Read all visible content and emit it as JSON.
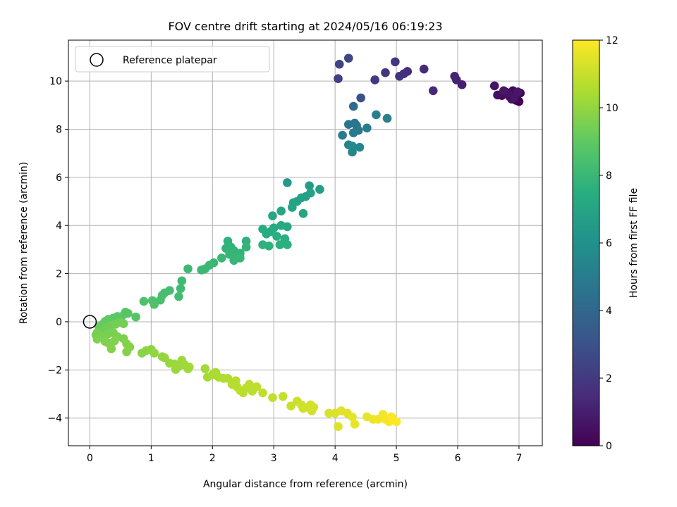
{
  "chart_data": {
    "type": "scatter",
    "title": "FOV centre drift starting at 2024/05/16 06:19:23",
    "xlabel": "Angular distance from reference (arcmin)",
    "ylabel": "Rotation from reference (arcmin)",
    "xlim": [
      -0.35,
      7.38
    ],
    "ylim": [
      -5.15,
      11.7
    ],
    "xticks": [
      0,
      1,
      2,
      3,
      4,
      5,
      6,
      7
    ],
    "yticks": [
      -4,
      -2,
      0,
      2,
      4,
      6,
      8,
      10
    ],
    "grid": true,
    "legend": {
      "position": "top-left",
      "entries": [
        "Reference platepar"
      ]
    },
    "reference_point": {
      "x": 0,
      "y": 0
    },
    "colorbar": {
      "label": "Hours from first FF file",
      "range": [
        0,
        12
      ],
      "ticks": [
        0,
        2,
        4,
        6,
        8,
        10,
        12
      ],
      "colormap": "viridis"
    },
    "points": [
      {
        "x": 7.0,
        "y": 9.15,
        "t": 0.05
      },
      {
        "x": 6.95,
        "y": 9.2,
        "t": 0.1
      },
      {
        "x": 7.02,
        "y": 9.5,
        "t": 0.15
      },
      {
        "x": 6.9,
        "y": 9.6,
        "t": 0.2
      },
      {
        "x": 6.85,
        "y": 9.35,
        "t": 0.25
      },
      {
        "x": 6.78,
        "y": 9.55,
        "t": 0.3
      },
      {
        "x": 6.72,
        "y": 9.4,
        "t": 0.35
      },
      {
        "x": 6.95,
        "y": 9.45,
        "t": 0.4
      },
      {
        "x": 6.88,
        "y": 9.25,
        "t": 0.45
      },
      {
        "x": 6.65,
        "y": 9.42,
        "t": 0.5
      },
      {
        "x": 6.6,
        "y": 9.8,
        "t": 0.6
      },
      {
        "x": 6.82,
        "y": 9.5,
        "t": 0.65
      },
      {
        "x": 6.92,
        "y": 9.3,
        "t": 0.7
      },
      {
        "x": 6.98,
        "y": 9.55,
        "t": 0.75
      },
      {
        "x": 6.75,
        "y": 9.6,
        "t": 0.8
      },
      {
        "x": 6.07,
        "y": 9.85,
        "t": 1.0
      },
      {
        "x": 5.98,
        "y": 10.05,
        "t": 1.1
      },
      {
        "x": 5.95,
        "y": 10.2,
        "t": 1.2
      },
      {
        "x": 5.6,
        "y": 9.6,
        "t": 1.3
      },
      {
        "x": 5.45,
        "y": 10.5,
        "t": 1.4
      },
      {
        "x": 5.18,
        "y": 10.4,
        "t": 1.5
      },
      {
        "x": 5.12,
        "y": 10.3,
        "t": 1.6
      },
      {
        "x": 5.05,
        "y": 10.2,
        "t": 1.7
      },
      {
        "x": 4.98,
        "y": 10.8,
        "t": 1.8
      },
      {
        "x": 4.82,
        "y": 10.35,
        "t": 1.9
      },
      {
        "x": 4.65,
        "y": 10.05,
        "t": 2.0
      },
      {
        "x": 4.05,
        "y": 10.1,
        "t": 2.2
      },
      {
        "x": 4.07,
        "y": 10.7,
        "t": 2.4
      },
      {
        "x": 4.22,
        "y": 10.95,
        "t": 2.6
      },
      {
        "x": 4.42,
        "y": 9.3,
        "t": 2.9
      },
      {
        "x": 4.3,
        "y": 8.95,
        "t": 4.2
      },
      {
        "x": 4.32,
        "y": 8.25,
        "t": 4.5
      },
      {
        "x": 4.22,
        "y": 8.2,
        "t": 4.6
      },
      {
        "x": 4.35,
        "y": 8.15,
        "t": 4.7
      },
      {
        "x": 4.38,
        "y": 7.95,
        "t": 4.8
      },
      {
        "x": 4.3,
        "y": 7.85,
        "t": 4.9
      },
      {
        "x": 4.12,
        "y": 7.75,
        "t": 5.0
      },
      {
        "x": 4.52,
        "y": 8.05,
        "t": 5.1
      },
      {
        "x": 4.67,
        "y": 8.6,
        "t": 5.2
      },
      {
        "x": 4.85,
        "y": 8.45,
        "t": 5.25
      },
      {
        "x": 4.22,
        "y": 7.35,
        "t": 5.3
      },
      {
        "x": 4.28,
        "y": 7.05,
        "t": 5.4
      },
      {
        "x": 4.4,
        "y": 7.25,
        "t": 5.5
      },
      {
        "x": 4.28,
        "y": 7.3,
        "t": 5.55
      },
      {
        "x": 3.22,
        "y": 5.78,
        "t": 6.5
      },
      {
        "x": 3.58,
        "y": 5.65,
        "t": 6.6
      },
      {
        "x": 3.75,
        "y": 5.5,
        "t": 6.7
      },
      {
        "x": 3.6,
        "y": 5.35,
        "t": 6.75
      },
      {
        "x": 3.52,
        "y": 5.2,
        "t": 6.8
      },
      {
        "x": 3.45,
        "y": 5.15,
        "t": 6.85
      },
      {
        "x": 3.38,
        "y": 5.0,
        "t": 6.9
      },
      {
        "x": 3.32,
        "y": 4.95,
        "t": 6.95
      },
      {
        "x": 3.48,
        "y": 4.5,
        "t": 7.0
      },
      {
        "x": 3.3,
        "y": 4.75,
        "t": 7.05
      },
      {
        "x": 3.12,
        "y": 4.6,
        "t": 7.1
      },
      {
        "x": 2.98,
        "y": 4.4,
        "t": 7.15
      },
      {
        "x": 3.22,
        "y": 3.95,
        "t": 7.2
      },
      {
        "x": 3.12,
        "y": 4.0,
        "t": 7.25
      },
      {
        "x": 3.0,
        "y": 3.9,
        "t": 7.3
      },
      {
        "x": 2.95,
        "y": 3.75,
        "t": 7.35
      },
      {
        "x": 2.82,
        "y": 3.85,
        "t": 7.4
      },
      {
        "x": 2.88,
        "y": 3.65,
        "t": 7.45
      },
      {
        "x": 3.05,
        "y": 3.55,
        "t": 7.5
      },
      {
        "x": 3.18,
        "y": 3.45,
        "t": 7.55
      },
      {
        "x": 3.22,
        "y": 3.2,
        "t": 7.6
      },
      {
        "x": 3.1,
        "y": 3.2,
        "t": 7.62
      },
      {
        "x": 2.92,
        "y": 3.15,
        "t": 7.65
      },
      {
        "x": 2.82,
        "y": 3.2,
        "t": 7.68
      },
      {
        "x": 2.55,
        "y": 3.35,
        "t": 7.7
      },
      {
        "x": 2.25,
        "y": 3.35,
        "t": 7.72
      },
      {
        "x": 2.3,
        "y": 3.1,
        "t": 7.75
      },
      {
        "x": 2.22,
        "y": 3.05,
        "t": 7.78
      },
      {
        "x": 2.35,
        "y": 2.95,
        "t": 7.8
      },
      {
        "x": 2.45,
        "y": 2.85,
        "t": 7.82
      },
      {
        "x": 2.55,
        "y": 3.1,
        "t": 7.85
      },
      {
        "x": 2.28,
        "y": 2.8,
        "t": 7.88
      },
      {
        "x": 2.4,
        "y": 2.72,
        "t": 7.9
      },
      {
        "x": 2.45,
        "y": 2.65,
        "t": 7.92
      },
      {
        "x": 2.35,
        "y": 2.55,
        "t": 7.95
      },
      {
        "x": 2.15,
        "y": 2.65,
        "t": 7.98
      },
      {
        "x": 2.02,
        "y": 2.45,
        "t": 8.0
      },
      {
        "x": 1.95,
        "y": 2.35,
        "t": 8.02
      },
      {
        "x": 1.88,
        "y": 2.2,
        "t": 8.05
      },
      {
        "x": 1.82,
        "y": 2.15,
        "t": 8.08
      },
      {
        "x": 1.6,
        "y": 2.2,
        "t": 8.1
      },
      {
        "x": 1.5,
        "y": 1.7,
        "t": 8.15
      },
      {
        "x": 1.48,
        "y": 1.38,
        "t": 8.2
      },
      {
        "x": 1.45,
        "y": 1.05,
        "t": 8.25
      },
      {
        "x": 1.3,
        "y": 1.3,
        "t": 8.3
      },
      {
        "x": 1.22,
        "y": 1.2,
        "t": 8.35
      },
      {
        "x": 1.18,
        "y": 1.1,
        "t": 8.4
      },
      {
        "x": 1.15,
        "y": 0.9,
        "t": 8.45
      },
      {
        "x": 1.02,
        "y": 0.88,
        "t": 8.5
      },
      {
        "x": 0.88,
        "y": 0.85,
        "t": 8.55
      },
      {
        "x": 1.05,
        "y": 0.72,
        "t": 8.6
      },
      {
        "x": 0.75,
        "y": 0.2,
        "t": 8.7
      },
      {
        "x": 0.62,
        "y": 0.35,
        "t": 8.75
      },
      {
        "x": 0.58,
        "y": 0.4,
        "t": 8.8
      },
      {
        "x": 0.52,
        "y": 0.22,
        "t": 8.85
      },
      {
        "x": 0.45,
        "y": 0.22,
        "t": 8.9
      },
      {
        "x": 0.38,
        "y": 0.15,
        "t": 8.95
      },
      {
        "x": 0.3,
        "y": 0.1,
        "t": 9.0
      },
      {
        "x": 0.25,
        "y": 0.02,
        "t": 9.05
      },
      {
        "x": 0.2,
        "y": -0.12,
        "t": 9.1
      },
      {
        "x": 0.15,
        "y": -0.2,
        "t": 9.15
      },
      {
        "x": 0.18,
        "y": -0.35,
        "t": 9.2
      },
      {
        "x": 0.22,
        "y": -0.3,
        "t": 9.25
      },
      {
        "x": 0.28,
        "y": -0.22,
        "t": 9.3
      },
      {
        "x": 0.35,
        "y": -0.15,
        "t": 9.35
      },
      {
        "x": 0.42,
        "y": -0.1,
        "t": 9.4
      },
      {
        "x": 0.5,
        "y": -0.02,
        "t": 9.42
      },
      {
        "x": 0.55,
        "y": -0.08,
        "t": 9.44
      },
      {
        "x": 0.12,
        "y": -0.45,
        "t": 9.46
      },
      {
        "x": 0.1,
        "y": -0.55,
        "t": 9.48
      },
      {
        "x": 0.2,
        "y": -0.6,
        "t": 9.5
      },
      {
        "x": 0.3,
        "y": -0.5,
        "t": 9.52
      },
      {
        "x": 0.38,
        "y": -0.45,
        "t": 9.54
      },
      {
        "x": 0.45,
        "y": -0.62,
        "t": 9.56
      },
      {
        "x": 0.55,
        "y": -0.7,
        "t": 9.58
      },
      {
        "x": 0.12,
        "y": -0.72,
        "t": 9.6
      },
      {
        "x": 0.25,
        "y": -0.82,
        "t": 9.62
      },
      {
        "x": 0.3,
        "y": -0.88,
        "t": 9.64
      },
      {
        "x": 0.4,
        "y": -0.8,
        "t": 9.66
      },
      {
        "x": 0.6,
        "y": -0.92,
        "t": 9.68
      },
      {
        "x": 0.35,
        "y": -1.12,
        "t": 9.7
      },
      {
        "x": 0.6,
        "y": -1.25,
        "t": 9.72
      },
      {
        "x": 0.65,
        "y": -1.05,
        "t": 9.74
      },
      {
        "x": 0.85,
        "y": -1.3,
        "t": 9.8
      },
      {
        "x": 0.92,
        "y": -1.2,
        "t": 9.85
      },
      {
        "x": 1.0,
        "y": -1.15,
        "t": 9.9
      },
      {
        "x": 1.05,
        "y": -1.3,
        "t": 9.95
      },
      {
        "x": 1.18,
        "y": -1.45,
        "t": 10.0
      },
      {
        "x": 1.22,
        "y": -1.5,
        "t": 10.05
      },
      {
        "x": 1.3,
        "y": -1.72,
        "t": 10.1
      },
      {
        "x": 1.38,
        "y": -1.75,
        "t": 10.15
      },
      {
        "x": 1.45,
        "y": -1.85,
        "t": 10.18
      },
      {
        "x": 1.4,
        "y": -1.98,
        "t": 10.2
      },
      {
        "x": 1.5,
        "y": -1.6,
        "t": 10.22
      },
      {
        "x": 1.55,
        "y": -1.8,
        "t": 10.24
      },
      {
        "x": 1.6,
        "y": -1.95,
        "t": 10.26
      },
      {
        "x": 1.62,
        "y": -1.88,
        "t": 10.28
      },
      {
        "x": 1.88,
        "y": -1.95,
        "t": 10.3
      },
      {
        "x": 1.92,
        "y": -2.3,
        "t": 10.35
      },
      {
        "x": 2.0,
        "y": -2.2,
        "t": 10.4
      },
      {
        "x": 2.05,
        "y": -2.1,
        "t": 10.45
      },
      {
        "x": 2.1,
        "y": -2.3,
        "t": 10.5
      },
      {
        "x": 2.18,
        "y": -2.35,
        "t": 10.55
      },
      {
        "x": 2.25,
        "y": -2.35,
        "t": 10.6
      },
      {
        "x": 2.32,
        "y": -2.6,
        "t": 10.65
      },
      {
        "x": 2.38,
        "y": -2.45,
        "t": 10.68
      },
      {
        "x": 2.4,
        "y": -2.7,
        "t": 10.7
      },
      {
        "x": 2.45,
        "y": -2.85,
        "t": 10.72
      },
      {
        "x": 2.5,
        "y": -2.95,
        "t": 10.74
      },
      {
        "x": 2.55,
        "y": -2.75,
        "t": 10.76
      },
      {
        "x": 2.6,
        "y": -2.6,
        "t": 10.78
      },
      {
        "x": 2.65,
        "y": -2.88,
        "t": 10.8
      },
      {
        "x": 2.72,
        "y": -2.7,
        "t": 10.82
      },
      {
        "x": 2.82,
        "y": -2.95,
        "t": 10.85
      },
      {
        "x": 2.98,
        "y": -3.15,
        "t": 10.9
      },
      {
        "x": 3.15,
        "y": -3.1,
        "t": 10.95
      },
      {
        "x": 3.28,
        "y": -3.5,
        "t": 11.0
      },
      {
        "x": 3.38,
        "y": -3.3,
        "t": 11.05
      },
      {
        "x": 3.45,
        "y": -3.45,
        "t": 11.1
      },
      {
        "x": 3.48,
        "y": -3.6,
        "t": 11.12
      },
      {
        "x": 3.55,
        "y": -3.55,
        "t": 11.15
      },
      {
        "x": 3.62,
        "y": -3.7,
        "t": 11.18
      },
      {
        "x": 3.6,
        "y": -3.45,
        "t": 11.2
      },
      {
        "x": 3.65,
        "y": -3.55,
        "t": 11.22
      },
      {
        "x": 3.9,
        "y": -3.8,
        "t": 11.3
      },
      {
        "x": 4.0,
        "y": -3.8,
        "t": 11.35
      },
      {
        "x": 4.05,
        "y": -4.35,
        "t": 11.4
      },
      {
        "x": 4.1,
        "y": -3.7,
        "t": 11.45
      },
      {
        "x": 4.2,
        "y": -3.8,
        "t": 11.5
      },
      {
        "x": 4.28,
        "y": -3.95,
        "t": 11.55
      },
      {
        "x": 4.32,
        "y": -4.25,
        "t": 11.6
      },
      {
        "x": 4.52,
        "y": -3.95,
        "t": 11.65
      },
      {
        "x": 4.62,
        "y": -4.05,
        "t": 11.7
      },
      {
        "x": 4.7,
        "y": -4.05,
        "t": 11.75
      },
      {
        "x": 4.78,
        "y": -3.85,
        "t": 11.8
      },
      {
        "x": 4.82,
        "y": -4.05,
        "t": 11.85
      },
      {
        "x": 4.88,
        "y": -4.15,
        "t": 11.9
      },
      {
        "x": 4.92,
        "y": -3.95,
        "t": 11.95
      },
      {
        "x": 5.0,
        "y": -4.15,
        "t": 12.0
      }
    ]
  }
}
